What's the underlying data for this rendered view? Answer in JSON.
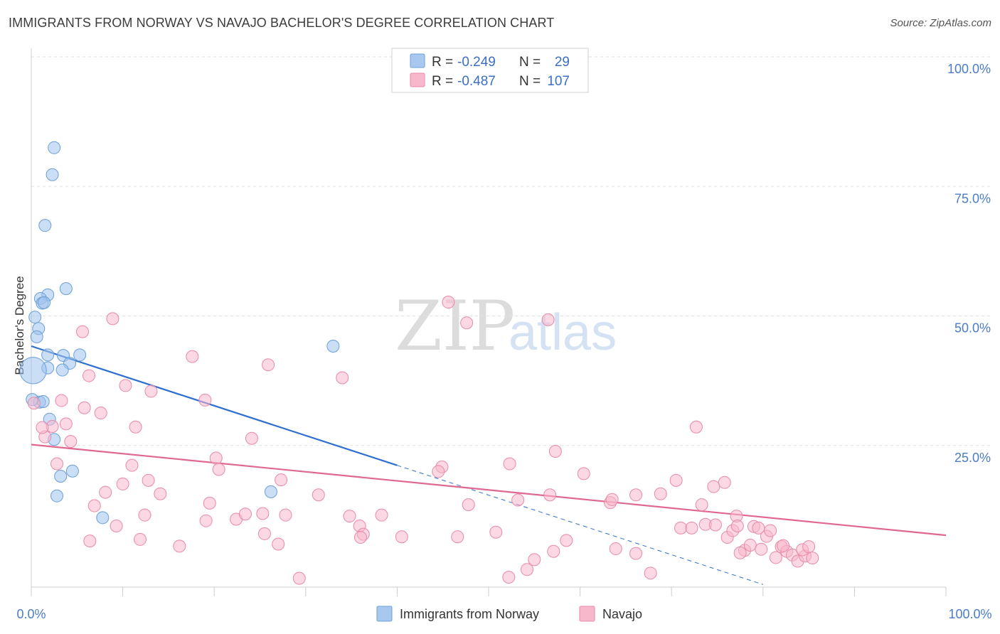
{
  "chart_data": {
    "type": "scatter",
    "title": "IMMIGRANTS FROM NORWAY VS NAVAJO BACHELOR'S DEGREE CORRELATION CHART",
    "source": "Source: ZipAtlas.com",
    "ylabel": "Bachelor's Degree",
    "xlim": [
      0,
      100
    ],
    "ylim": [
      0,
      100
    ],
    "x_tick_labels": [
      "0.0%",
      "100.0%"
    ],
    "y_tick_labels": [
      "100.0%",
      "75.0%",
      "50.0%",
      "25.0%"
    ],
    "y_tick_values": [
      100,
      75,
      50,
      25
    ],
    "grid": true,
    "watermark": {
      "zip": "ZIP",
      "atlas": "atlas"
    },
    "legend": {
      "position": "top-center",
      "r_label": "R =",
      "n_label": "N =",
      "entries": [
        {
          "r": "-0.249",
          "n": "29",
          "color": "#a8c8f0"
        },
        {
          "r": "-0.487",
          "n": "107",
          "color": "#f7b8cc"
        }
      ]
    },
    "series": [
      {
        "name": "Immigrants from Norway",
        "color": "#9ec2ee",
        "stroke": "#6a9fd8",
        "trend": {
          "x0": 0,
          "y0": 46.5,
          "x1": 40,
          "y1": 23.5,
          "dash_to_x": 100
        },
        "trend_color": "#2f6fd0",
        "points": [
          [
            2.5,
            84.8
          ],
          [
            2.3,
            79.6
          ],
          [
            1.5,
            69.8
          ],
          [
            3.8,
            57.6
          ],
          [
            1.8,
            56.4
          ],
          [
            1.0,
            55.7
          ],
          [
            1.2,
            54.8
          ],
          [
            1.4,
            54.9
          ],
          [
            0.4,
            52.1
          ],
          [
            0.8,
            49.9
          ],
          [
            0.6,
            48.3
          ],
          [
            1.8,
            44.8
          ],
          [
            3.5,
            44.7
          ],
          [
            5.3,
            44.8
          ],
          [
            4.2,
            43.2
          ],
          [
            1.8,
            42.3
          ],
          [
            3.4,
            41.9
          ],
          [
            0.2,
            41.8
          ],
          [
            0.9,
            35.7
          ],
          [
            1.3,
            35.8
          ],
          [
            2.0,
            32.4
          ],
          [
            2.5,
            28.5
          ],
          [
            4.5,
            22.4
          ],
          [
            3.2,
            21.4
          ],
          [
            2.8,
            17.6
          ],
          [
            7.8,
            13.4
          ],
          [
            26.2,
            18.4
          ],
          [
            33.0,
            46.5
          ],
          [
            0.1,
            36.2
          ]
        ],
        "sizes": [
          1,
          1,
          1,
          1,
          1,
          1,
          1,
          1,
          1,
          1,
          1,
          1,
          1,
          1,
          1,
          1,
          1,
          2.2,
          1,
          1,
          1,
          1,
          1,
          1,
          1,
          1,
          1,
          1,
          1
        ]
      },
      {
        "name": "Navajo",
        "color": "#f7b8cc",
        "stroke": "#e88aa8",
        "trend": {
          "x0": 0,
          "y0": 27.5,
          "x1": 100,
          "y1": 10.0
        },
        "trend_color": "#e06890",
        "points": [
          [
            0.3,
            35.5
          ],
          [
            1.5,
            29.0
          ],
          [
            2.3,
            31.0
          ],
          [
            1.2,
            30.8
          ],
          [
            3.3,
            36.0
          ],
          [
            3.8,
            31.5
          ],
          [
            4.3,
            28.1
          ],
          [
            2.8,
            23.8
          ],
          [
            5.6,
            49.3
          ],
          [
            5.8,
            34.6
          ],
          [
            6.3,
            40.8
          ],
          [
            7.6,
            33.6
          ],
          [
            8.9,
            51.8
          ],
          [
            10.3,
            38.9
          ],
          [
            11.4,
            30.9
          ],
          [
            13.1,
            37.8
          ],
          [
            11.0,
            23.5
          ],
          [
            12.8,
            20.6
          ],
          [
            10.0,
            19.9
          ],
          [
            8.1,
            18.3
          ],
          [
            6.9,
            15.7
          ],
          [
            9.3,
            11.8
          ],
          [
            12.4,
            13.9
          ],
          [
            14.1,
            18.0
          ],
          [
            11.9,
            9.2
          ],
          [
            6.4,
            8.9
          ],
          [
            16.2,
            7.9
          ],
          [
            17.6,
            44.5
          ],
          [
            19.0,
            36.1
          ],
          [
            20.2,
            24.9
          ],
          [
            20.5,
            22.7
          ],
          [
            19.5,
            16.2
          ],
          [
            19.1,
            12.8
          ],
          [
            22.4,
            13.1
          ],
          [
            23.4,
            14.1
          ],
          [
            24.1,
            28.7
          ],
          [
            25.3,
            14.2
          ],
          [
            25.5,
            10.3
          ],
          [
            25.9,
            42.9
          ],
          [
            27.3,
            20.7
          ],
          [
            27.8,
            13.9
          ],
          [
            27.0,
            8.3
          ],
          [
            29.3,
            1.7
          ],
          [
            31.4,
            17.8
          ],
          [
            34.0,
            40.4
          ],
          [
            34.8,
            13.7
          ],
          [
            35.9,
            11.8
          ],
          [
            36.3,
            10.2
          ],
          [
            36.0,
            9.6
          ],
          [
            38.3,
            13.9
          ],
          [
            44.9,
            23.2
          ],
          [
            44.5,
            22.3
          ],
          [
            45.6,
            55.0
          ],
          [
            47.6,
            51.0
          ],
          [
            47.8,
            15.9
          ],
          [
            50.8,
            10.6
          ],
          [
            52.3,
            23.8
          ],
          [
            53.2,
            16.8
          ],
          [
            56.5,
            51.6
          ],
          [
            56.7,
            17.8
          ],
          [
            57.3,
            26.2
          ],
          [
            58.5,
            9.0
          ],
          [
            60.4,
            21.9
          ],
          [
            63.3,
            16.3
          ],
          [
            63.5,
            16.9
          ],
          [
            66.1,
            17.8
          ],
          [
            68.8,
            18.0
          ],
          [
            70.5,
            20.6
          ],
          [
            71.0,
            11.4
          ],
          [
            72.2,
            11.4
          ],
          [
            72.7,
            30.9
          ],
          [
            73.3,
            15.9
          ],
          [
            73.7,
            12.1
          ],
          [
            74.8,
            12.0
          ],
          [
            74.6,
            19.4
          ],
          [
            75.8,
            20.2
          ],
          [
            76.1,
            9.6
          ],
          [
            76.7,
            10.9
          ],
          [
            77.1,
            13.7
          ],
          [
            77.2,
            11.8
          ],
          [
            78.0,
            7.1
          ],
          [
            78.6,
            8.1
          ],
          [
            79.0,
            11.7
          ],
          [
            79.5,
            11.4
          ],
          [
            80.4,
            9.8
          ],
          [
            80.8,
            10.9
          ],
          [
            81.4,
            5.7
          ],
          [
            82.0,
            7.8
          ],
          [
            82.6,
            6.9
          ],
          [
            83.2,
            6.2
          ],
          [
            83.8,
            5.0
          ],
          [
            84.6,
            6.0
          ],
          [
            85.4,
            5.6
          ],
          [
            84.3,
            7.2
          ],
          [
            85.0,
            7.8
          ],
          [
            82.2,
            8.0
          ],
          [
            79.8,
            7.3
          ],
          [
            77.5,
            6.6
          ],
          [
            63.9,
            7.4
          ],
          [
            66.1,
            6.5
          ],
          [
            67.7,
            2.7
          ],
          [
            54.2,
            3.4
          ],
          [
            52.2,
            1.9
          ],
          [
            55.0,
            5.3
          ],
          [
            57.1,
            6.9
          ],
          [
            40.5,
            9.7
          ],
          [
            46.6,
            9.7
          ]
        ]
      }
    ]
  },
  "bottom_legend": {
    "items": [
      {
        "label": "Immigrants from Norway",
        "color": "#a8c8f0"
      },
      {
        "label": "Navajo",
        "color": "#f7b8cc"
      }
    ]
  }
}
